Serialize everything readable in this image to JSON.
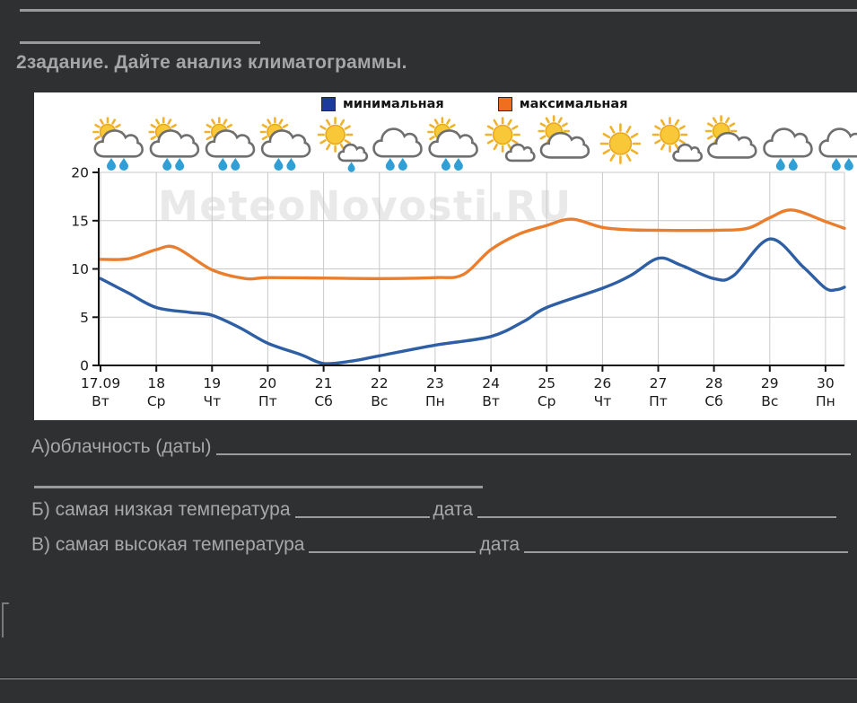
{
  "title": "2задание. Дайте анализ климатограммы.",
  "questions": {
    "a": "А)облачность (даты)",
    "b": "Б) самая низкая температура",
    "b_date": "дата",
    "c": "В) самая высокая температура",
    "c_date": "дата"
  },
  "chart_data": {
    "type": "line",
    "title": "",
    "watermark": "MeteoNovosti.RU",
    "watermark_color": "#e9e9e9",
    "legend_position": "top",
    "grid": true,
    "ylim": [
      0,
      20
    ],
    "yticks": [
      0,
      5,
      10,
      15,
      20
    ],
    "xlabel": "",
    "ylabel": "",
    "categories": [
      {
        "date": "17.09",
        "day": "Вт",
        "weather": "sun-cloud-rain"
      },
      {
        "date": "18",
        "day": "Ср",
        "weather": "sun-cloud-rain"
      },
      {
        "date": "19",
        "day": "Чт",
        "weather": "sun-cloud-rain"
      },
      {
        "date": "20",
        "day": "Пт",
        "weather": "sun-cloud-rain"
      },
      {
        "date": "21",
        "day": "Сб",
        "weather": "sun-smallcloud-rain"
      },
      {
        "date": "22",
        "day": "Вс",
        "weather": "cloud-rain"
      },
      {
        "date": "23",
        "day": "Пн",
        "weather": "sun-cloud-rain"
      },
      {
        "date": "24",
        "day": "Вт",
        "weather": "sun-smallcloud"
      },
      {
        "date": "25",
        "day": "Ср",
        "weather": "sun-bigcloud"
      },
      {
        "date": "26",
        "day": "Чт",
        "weather": "sun"
      },
      {
        "date": "27",
        "day": "Пт",
        "weather": "sun-smallcloud"
      },
      {
        "date": "28",
        "day": "Сб",
        "weather": "sun-bigcloud"
      },
      {
        "date": "29",
        "day": "Вс",
        "weather": "cloud-rain"
      },
      {
        "date": "30",
        "day": "Пн",
        "weather": "cloud-rain"
      }
    ],
    "series": [
      {
        "name": "минимальная",
        "color": "#1b3a9b",
        "line_color": "#2e5fa5",
        "values": [
          9,
          6,
          5.2,
          2.3,
          0.2,
          1,
          2.1,
          3,
          6,
          8,
          11,
          9,
          13,
          8
        ],
        "shape": [
          [
            0,
            9
          ],
          [
            0.5,
            7.5
          ],
          [
            1,
            6
          ],
          [
            1.6,
            5.5
          ],
          [
            2,
            5.2
          ],
          [
            2.5,
            3.9
          ],
          [
            3,
            2.3
          ],
          [
            3.6,
            1.1
          ],
          [
            4,
            0.2
          ],
          [
            4.5,
            0.45
          ],
          [
            5,
            1
          ],
          [
            6,
            2.1
          ],
          [
            7,
            3
          ],
          [
            7.6,
            4.6
          ],
          [
            8,
            6
          ],
          [
            9,
            8
          ],
          [
            9.5,
            9.3
          ],
          [
            10,
            11.1
          ],
          [
            10.4,
            10.4
          ],
          [
            11,
            9
          ],
          [
            11.35,
            9.3
          ],
          [
            12,
            13.1
          ],
          [
            12.6,
            10.2
          ],
          [
            13,
            8
          ],
          [
            13.2,
            7.85
          ],
          [
            13.37,
            8.1
          ]
        ]
      },
      {
        "name": "максимальная",
        "color": "#f06f1f",
        "line_color": "#e97f2e",
        "values": [
          11,
          12,
          9.5,
          9,
          9,
          9,
          9.7,
          12,
          14.5,
          14.3,
          14,
          14,
          15.3,
          14.8
        ],
        "shape": [
          [
            0,
            11
          ],
          [
            0.5,
            11.05
          ],
          [
            1,
            12
          ],
          [
            1.35,
            12.2
          ],
          [
            2,
            9.9
          ],
          [
            2.6,
            9
          ],
          [
            3,
            9.1
          ],
          [
            4,
            9.05
          ],
          [
            5,
            9
          ],
          [
            6,
            9.1
          ],
          [
            6.5,
            9.4
          ],
          [
            7,
            12
          ],
          [
            7.5,
            13.6
          ],
          [
            8,
            14.5
          ],
          [
            8.45,
            15.15
          ],
          [
            9,
            14.3
          ],
          [
            9.5,
            14.05
          ],
          [
            10,
            14
          ],
          [
            11,
            14
          ],
          [
            11.6,
            14.2
          ],
          [
            12,
            15.3
          ],
          [
            12.4,
            16.1
          ],
          [
            13,
            14.9
          ],
          [
            13.37,
            14.2
          ]
        ]
      }
    ]
  }
}
